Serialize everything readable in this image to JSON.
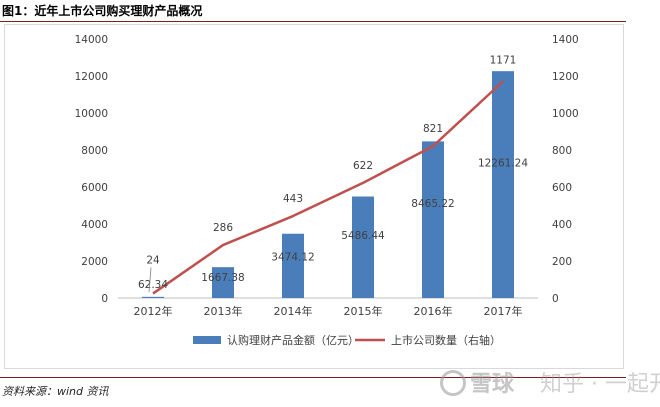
{
  "figure": {
    "title": "图1：近年上市公司购买理财产品概况",
    "source": "资料来源：wind 资讯",
    "watermark_left": "雪球",
    "watermark_right": "知乎 · 一起开车"
  },
  "chart_data": {
    "type": "bar",
    "categories": [
      "2012年",
      "2013年",
      "2014年",
      "2015年",
      "2016年",
      "2017年"
    ],
    "series": [
      {
        "name": "认购理财产品金额（亿元）",
        "type": "bar",
        "axis": "left",
        "color": "#4a7ebb",
        "values": [
          62.34,
          1667.38,
          3474.12,
          5486.44,
          8465.22,
          12261.24
        ],
        "labels": [
          "62.34",
          "1667.38",
          "3474.12",
          "5486.44",
          "8465.22",
          "12261.24"
        ]
      },
      {
        "name": "上市公司数量（右轴）",
        "type": "line",
        "axis": "right",
        "color": "#c0504d",
        "values": [
          24,
          286,
          443,
          622,
          821,
          1171
        ],
        "labels": [
          "24",
          "286",
          "443",
          "622",
          "821",
          "1171"
        ]
      }
    ],
    "y_left": {
      "min": 0,
      "max": 14000,
      "ticks": [
        "0",
        "2000",
        "4000",
        "6000",
        "8000",
        "10000",
        "12000",
        "14000"
      ]
    },
    "y_right": {
      "min": 0,
      "max": 1400,
      "ticks": [
        "0",
        "200",
        "400",
        "600",
        "800",
        "1000",
        "1200",
        "1400"
      ]
    },
    "grid": false,
    "legend": "bottom"
  }
}
